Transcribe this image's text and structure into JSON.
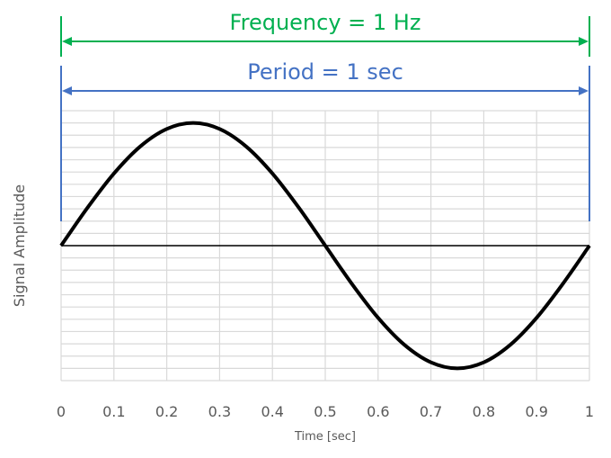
{
  "chart_data": {
    "type": "line",
    "title": "",
    "xlabel": "Time [sec]",
    "ylabel": "Signal Amplitude",
    "xlim": [
      0,
      1
    ],
    "ylim": [
      -1.1,
      1.1
    ],
    "grid": true,
    "x_ticks": [
      "0",
      "0.1",
      "0.2",
      "0.3",
      "0.4",
      "0.5",
      "0.6",
      "0.7",
      "0.8",
      "0.9",
      "1"
    ],
    "series": [
      {
        "x": [
          0,
          0.05,
          0.1,
          0.15,
          0.2,
          0.25,
          0.3,
          0.35,
          0.4,
          0.45,
          0.5,
          0.55,
          0.6,
          0.65,
          0.7,
          0.75,
          0.8,
          0.85,
          0.9,
          0.95,
          1
        ],
        "y": [
          0,
          0.309,
          0.588,
          0.809,
          0.951,
          1,
          0.951,
          0.809,
          0.588,
          0.309,
          0,
          -0.309,
          -0.588,
          -0.809,
          -0.951,
          -1,
          -0.951,
          -0.809,
          -0.588,
          -0.309,
          0
        ]
      }
    ],
    "annotations": [
      {
        "text": "Frequency = 1 Hz",
        "from": 0,
        "to": 1,
        "color": "#00b050"
      },
      {
        "text": "Period = 1 sec",
        "from": 0,
        "to": 1,
        "color": "#4472c4"
      }
    ],
    "colors": {
      "curve": "#000000",
      "grid": "#d9d9d9",
      "axis": "#000000",
      "tick_text": "#595959"
    }
  }
}
